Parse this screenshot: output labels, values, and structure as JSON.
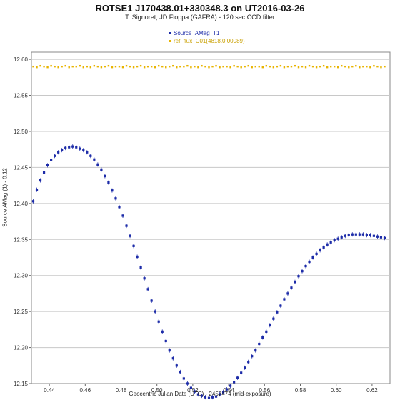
{
  "chart_data": {
    "type": "scatter",
    "title": "ROTSE1 J170438.01+330348.3 on UT2016-03-26",
    "subtitle": "T. Signoret, JD Floppa (GAFRA) - 120 sec CCD filter",
    "xlabel": "Geocentric Julian Date (UTC) - 2457474 (mid-exposure)",
    "ylabel": "Source AMag (1) - 0.12",
    "xlim": [
      0.43,
      0.63
    ],
    "ylim": [
      12.15,
      12.61
    ],
    "xticks": [
      "0.44",
      "0.46",
      "0.48",
      "0.50",
      "0.52",
      "0.54",
      "0.56",
      "0.58",
      "0.60",
      "0.62"
    ],
    "yticks": [
      "12.15",
      "12.20",
      "12.25",
      "12.30",
      "12.35",
      "12.40",
      "12.45",
      "12.50",
      "12.55",
      "12.60"
    ],
    "grid": "horizontal",
    "legend_position": "top-center",
    "series": [
      {
        "name": "Source_AMag_T1",
        "color": "#1c2ba8",
        "marker": "square-with-errorbars",
        "x": [
          0.431,
          0.433,
          0.435,
          0.437,
          0.439,
          0.441,
          0.443,
          0.445,
          0.447,
          0.449,
          0.451,
          0.453,
          0.455,
          0.457,
          0.459,
          0.461,
          0.463,
          0.465,
          0.467,
          0.469,
          0.471,
          0.473,
          0.475,
          0.477,
          0.479,
          0.481,
          0.483,
          0.485,
          0.487,
          0.489,
          0.491,
          0.493,
          0.495,
          0.497,
          0.499,
          0.501,
          0.503,
          0.505,
          0.507,
          0.509,
          0.511,
          0.513,
          0.515,
          0.517,
          0.519,
          0.521,
          0.523,
          0.525,
          0.527,
          0.529,
          0.531,
          0.533,
          0.535,
          0.537,
          0.539,
          0.541,
          0.543,
          0.545,
          0.547,
          0.549,
          0.551,
          0.553,
          0.555,
          0.557,
          0.559,
          0.561,
          0.563,
          0.565,
          0.567,
          0.569,
          0.571,
          0.573,
          0.575,
          0.577,
          0.579,
          0.581,
          0.583,
          0.585,
          0.587,
          0.589,
          0.591,
          0.593,
          0.595,
          0.597,
          0.599,
          0.601,
          0.603,
          0.605,
          0.607,
          0.609,
          0.611,
          0.613,
          0.615,
          0.617,
          0.619,
          0.621,
          0.623,
          0.625,
          0.627
        ],
        "y": [
          12.403,
          12.419,
          12.432,
          12.443,
          12.453,
          12.46,
          12.466,
          12.471,
          12.474,
          12.477,
          12.478,
          12.479,
          12.478,
          12.476,
          12.474,
          12.471,
          12.466,
          12.461,
          12.454,
          12.447,
          12.438,
          12.429,
          12.418,
          12.407,
          12.395,
          12.383,
          12.369,
          12.355,
          12.341,
          12.326,
          12.311,
          12.296,
          12.281,
          12.265,
          12.25,
          12.236,
          12.222,
          12.209,
          12.196,
          12.185,
          12.175,
          12.166,
          12.157,
          12.15,
          12.144,
          12.139,
          12.135,
          12.133,
          12.131,
          12.13,
          12.131,
          12.132,
          12.135,
          12.138,
          12.142,
          12.147,
          12.152,
          12.158,
          12.165,
          12.172,
          12.18,
          12.188,
          12.196,
          12.205,
          12.214,
          12.222,
          12.231,
          12.24,
          12.249,
          12.258,
          12.267,
          12.275,
          12.283,
          12.291,
          12.299,
          12.306,
          12.313,
          12.319,
          12.325,
          12.33,
          12.335,
          12.339,
          12.343,
          12.346,
          12.349,
          12.351,
          12.353,
          12.355,
          12.356,
          12.357,
          12.357,
          12.357,
          12.357,
          12.356,
          12.356,
          12.355,
          12.354,
          12.353,
          12.352
        ]
      },
      {
        "name": "ref_flux_C01(4818.0.00089)",
        "color": "#e8b400",
        "marker": "square",
        "x": [
          0.431,
          0.433,
          0.435,
          0.437,
          0.439,
          0.441,
          0.443,
          0.445,
          0.447,
          0.449,
          0.451,
          0.453,
          0.455,
          0.457,
          0.459,
          0.461,
          0.463,
          0.465,
          0.467,
          0.469,
          0.471,
          0.473,
          0.475,
          0.477,
          0.479,
          0.481,
          0.483,
          0.485,
          0.487,
          0.489,
          0.491,
          0.493,
          0.495,
          0.497,
          0.499,
          0.501,
          0.503,
          0.505,
          0.507,
          0.509,
          0.511,
          0.513,
          0.515,
          0.517,
          0.519,
          0.521,
          0.523,
          0.525,
          0.527,
          0.529,
          0.531,
          0.533,
          0.535,
          0.537,
          0.539,
          0.541,
          0.543,
          0.545,
          0.547,
          0.549,
          0.551,
          0.553,
          0.555,
          0.557,
          0.559,
          0.561,
          0.563,
          0.565,
          0.567,
          0.569,
          0.571,
          0.573,
          0.575,
          0.577,
          0.579,
          0.581,
          0.583,
          0.585,
          0.587,
          0.589,
          0.591,
          0.593,
          0.595,
          0.597,
          0.599,
          0.601,
          0.603,
          0.605,
          0.607,
          0.609,
          0.611,
          0.613,
          0.615,
          0.617,
          0.619,
          0.621,
          0.623,
          0.625,
          0.627
        ],
        "y": [
          12.59,
          12.589,
          12.591,
          12.59,
          12.589,
          12.591,
          12.59,
          12.589,
          12.59,
          12.591,
          12.589,
          12.59,
          12.59,
          12.591,
          12.589,
          12.59,
          12.589,
          12.591,
          12.59,
          12.589,
          12.59,
          12.591,
          12.589,
          12.59,
          12.59,
          12.589,
          12.591,
          12.59,
          12.589,
          12.59,
          12.591,
          12.589,
          12.59,
          12.59,
          12.589,
          12.591,
          12.59,
          12.589,
          12.59,
          12.591,
          12.589,
          12.59,
          12.59,
          12.591,
          12.589,
          12.59,
          12.589,
          12.591,
          12.59,
          12.589,
          12.59,
          12.591,
          12.589,
          12.59,
          12.59,
          12.589,
          12.591,
          12.59,
          12.589,
          12.59,
          12.591,
          12.589,
          12.59,
          12.59,
          12.589,
          12.591,
          12.59,
          12.589,
          12.59,
          12.591,
          12.589,
          12.59,
          12.59,
          12.591,
          12.589,
          12.59,
          12.589,
          12.591,
          12.59,
          12.589,
          12.59,
          12.591,
          12.589,
          12.59,
          12.59,
          12.589,
          12.591,
          12.59,
          12.589,
          12.59,
          12.591,
          12.589,
          12.59,
          12.59,
          12.589,
          12.591,
          12.59,
          12.589,
          12.59
        ]
      }
    ]
  }
}
